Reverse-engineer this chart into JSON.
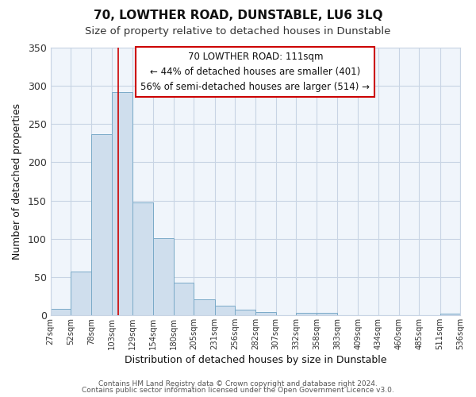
{
  "title": "70, LOWTHER ROAD, DUNSTABLE, LU6 3LQ",
  "subtitle": "Size of property relative to detached houses in Dunstable",
  "xlabel": "Distribution of detached houses by size in Dunstable",
  "ylabel": "Number of detached properties",
  "bar_color": "#cfdeed",
  "bar_edge_color": "#7aaac8",
  "grid_color": "#c8d4e4",
  "background_color": "#ffffff",
  "plot_bg_color": "#f0f5fb",
  "vline_color": "#cc0000",
  "vline_x": 111,
  "bin_edges": [
    27,
    52,
    78,
    103,
    129,
    154,
    180,
    205,
    231,
    256,
    282,
    307,
    332,
    358,
    383,
    409,
    434,
    460,
    485,
    511,
    536
  ],
  "bar_heights": [
    8,
    57,
    237,
    292,
    147,
    101,
    42,
    21,
    12,
    7,
    4,
    0,
    3,
    3,
    0,
    0,
    0,
    0,
    0,
    2
  ],
  "tick_labels": [
    "27sqm",
    "52sqm",
    "78sqm",
    "103sqm",
    "129sqm",
    "154sqm",
    "180sqm",
    "205sqm",
    "231sqm",
    "256sqm",
    "282sqm",
    "307sqm",
    "332sqm",
    "358sqm",
    "383sqm",
    "409sqm",
    "434sqm",
    "460sqm",
    "485sqm",
    "511sqm",
    "536sqm"
  ],
  "ylim": [
    0,
    350
  ],
  "yticks": [
    0,
    50,
    100,
    150,
    200,
    250,
    300,
    350
  ],
  "annotation_title": "70 LOWTHER ROAD: 111sqm",
  "annotation_line1": "← 44% of detached houses are smaller (401)",
  "annotation_line2": "56% of semi-detached houses are larger (514) →",
  "annotation_box_color": "#ffffff",
  "annotation_box_edge": "#cc0000",
  "footer1": "Contains HM Land Registry data © Crown copyright and database right 2024.",
  "footer2": "Contains public sector information licensed under the Open Government Licence v3.0."
}
